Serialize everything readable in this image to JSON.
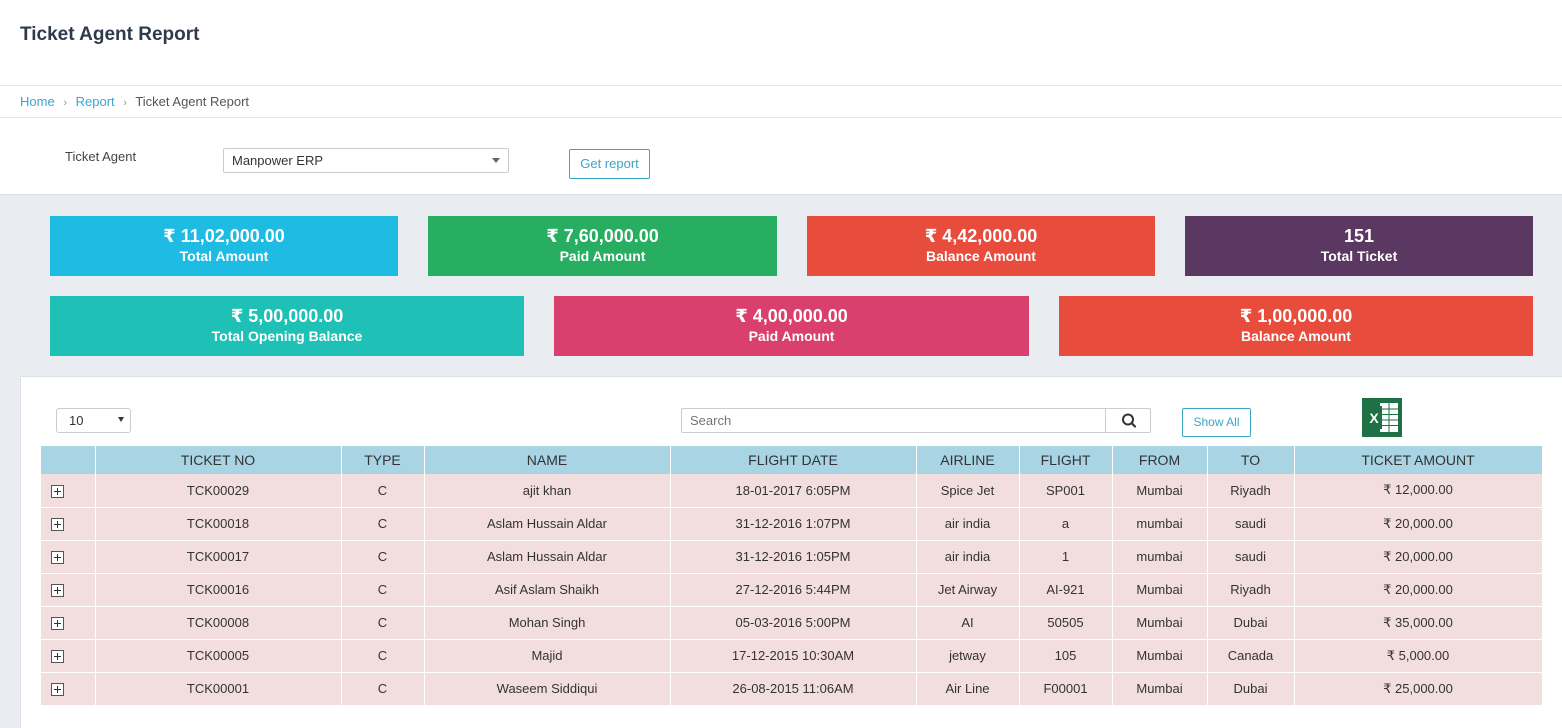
{
  "page": {
    "title": "Ticket Agent Report"
  },
  "breadcrumb": {
    "home": "Home",
    "report": "Report",
    "current": "Ticket Agent Report",
    "separator": "›"
  },
  "filter": {
    "label": "Ticket Agent",
    "selected": "Manpower ERP",
    "button": "Get report"
  },
  "stats_row1": [
    {
      "value": "₹ 11,02,000.00",
      "label": "Total Amount",
      "color": "#1ebbe3"
    },
    {
      "value": "₹ 7,60,000.00",
      "label": "Paid Amount",
      "color": "#27ae60"
    },
    {
      "value": "₹ 4,42,000.00",
      "label": "Balance Amount",
      "color": "#e74c3c"
    },
    {
      "value": "151",
      "label": "Total Ticket",
      "color": "#5a3862"
    }
  ],
  "stats_row2": [
    {
      "value": "₹ 5,00,000.00",
      "label": "Total Opening Balance",
      "color": "#1fc1b6"
    },
    {
      "value": "₹ 4,00,000.00",
      "label": "Paid Amount",
      "color": "#d9406e"
    },
    {
      "value": "₹ 1,00,000.00",
      "label": "Balance Amount",
      "color": "#e74c3c"
    }
  ],
  "table_controls": {
    "page_length": "10",
    "search_placeholder": "Search",
    "show_all": "Show All"
  },
  "table": {
    "columns": [
      "",
      "TICKET NO",
      "TYPE",
      "NAME",
      "FLIGHT DATE",
      "AIRLINE",
      "FLIGHT",
      "FROM",
      "TO",
      "TICKET AMOUNT"
    ],
    "rows": [
      [
        "",
        "TCK00029",
        "C",
        "ajit khan",
        "18-01-2017 6:05PM",
        "Spice Jet",
        "SP001",
        "Mumbai",
        "Riyadh",
        "₹ 12,000.00"
      ],
      [
        "",
        "TCK00018",
        "C",
        "Aslam Hussain Aldar",
        "31-12-2016 1:07PM",
        "air india",
        "a",
        "mumbai",
        "saudi",
        "₹ 20,000.00"
      ],
      [
        "",
        "TCK00017",
        "C",
        "Aslam Hussain Aldar",
        "31-12-2016 1:05PM",
        "air india",
        "1",
        "mumbai",
        "saudi",
        "₹ 20,000.00"
      ],
      [
        "",
        "TCK00016",
        "C",
        "Asif Aslam Shaikh",
        "27-12-2016 5:44PM",
        "Jet Airway",
        "AI-921",
        "Mumbai",
        "Riyadh",
        "₹ 20,000.00"
      ],
      [
        "",
        "TCK00008",
        "C",
        "Mohan Singh",
        "05-03-2016 5:00PM",
        "AI",
        "50505",
        "Mumbai",
        "Dubai",
        "₹ 35,000.00"
      ],
      [
        "",
        "TCK00005",
        "C",
        "Majid",
        "17-12-2015 10:30AM",
        "jetway",
        "105",
        "Mumbai",
        "Canada",
        "₹ 5,000.00"
      ],
      [
        "",
        "TCK00001",
        "C",
        "Waseem Siddiqui",
        "26-08-2015 11:06AM",
        "Air Line",
        "F00001",
        "Mumbai",
        "Dubai",
        "₹ 25,000.00"
      ]
    ]
  }
}
